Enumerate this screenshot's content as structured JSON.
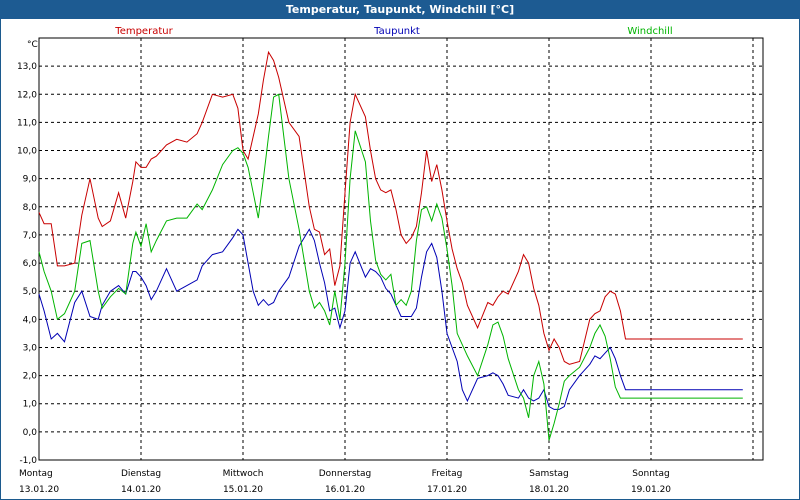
{
  "window": {
    "title": "Temperatur, Taupunkt, Windchill [°C]"
  },
  "colors": {
    "temperatur": "#c80000",
    "taupunkt": "#0000b4",
    "windchill": "#00b400",
    "title_bg": "#1d5b92"
  },
  "chart_data": {
    "type": "line",
    "title": "Temperatur, Taupunkt, Windchill [°C]",
    "ylabel": "°C",
    "ylim": [
      -1.0,
      14.0
    ],
    "xlim": [
      0,
      7
    ],
    "grid": true,
    "y_ticks": [
      "-1,0",
      "0,0",
      "1,0",
      "2,0",
      "3,0",
      "4,0",
      "5,0",
      "6,0",
      "7,0",
      "8,0",
      "9,0",
      "10,0",
      "11,0",
      "12,0",
      "13,0"
    ],
    "x_tick_days": [
      "Montag",
      "Dienstag",
      "Mittwoch",
      "Donnerstag",
      "Freitag",
      "Samstag",
      "Sonntag"
    ],
    "x_tick_dates": [
      "13.01.20",
      "14.01.20",
      "15.01.20",
      "16.01.20",
      "17.01.20",
      "18.01.20",
      "19.01.20"
    ],
    "series": [
      {
        "name": "Temperatur",
        "color": "#c80000",
        "x": [
          0,
          0.05,
          0.12,
          0.18,
          0.25,
          0.35,
          0.42,
          0.5,
          0.58,
          0.62,
          0.7,
          0.78,
          0.85,
          0.92,
          0.95,
          1.0,
          1.05,
          1.1,
          1.15,
          1.25,
          1.35,
          1.45,
          1.55,
          1.6,
          1.7,
          1.8,
          1.9,
          1.95,
          2.0,
          2.05,
          2.1,
          2.15,
          2.2,
          2.25,
          2.3,
          2.35,
          2.45,
          2.55,
          2.65,
          2.7,
          2.75,
          2.8,
          2.85,
          2.9,
          2.95,
          3.0,
          3.05,
          3.1,
          3.2,
          3.25,
          3.3,
          3.35,
          3.4,
          3.45,
          3.5,
          3.55,
          3.6,
          3.65,
          3.7,
          3.75,
          3.8,
          3.85,
          3.9,
          3.95,
          4.0,
          4.05,
          4.1,
          4.15,
          4.2,
          4.3,
          4.4,
          4.45,
          4.5,
          4.55,
          4.6,
          4.7,
          4.75,
          4.8,
          4.85,
          4.9,
          4.95,
          5.0,
          5.05,
          5.1,
          5.15,
          5.2,
          5.3,
          5.4,
          5.45,
          5.5,
          5.55,
          5.6,
          5.65,
          5.7,
          5.75,
          5.8,
          5.85,
          5.9,
          5.95,
          6.0,
          6.05,
          6.1,
          6.15,
          6.2,
          6.3,
          6.4,
          6.45,
          6.5,
          6.55,
          6.6,
          6.65,
          6.7,
          6.75,
          6.8,
          6.85,
          6.9
        ],
        "values": [
          7.8,
          7.4,
          7.4,
          5.9,
          5.9,
          6.0,
          7.7,
          9.0,
          7.6,
          7.3,
          7.5,
          8.5,
          7.6,
          8.9,
          9.6,
          9.4,
          9.4,
          9.7,
          9.8,
          10.2,
          10.4,
          10.3,
          10.6,
          11.0,
          12.0,
          11.9,
          12.0,
          11.5,
          10.0,
          9.7,
          10.5,
          11.3,
          12.5,
          13.5,
          13.2,
          12.6,
          11.0,
          10.5,
          8.0,
          7.2,
          7.1,
          6.3,
          6.5,
          5.2,
          5.9,
          8.5,
          11.0,
          12.0,
          11.2,
          10.0,
          9.0,
          8.6,
          8.5,
          8.6,
          7.9,
          7.0,
          6.7,
          6.9,
          7.3,
          8.5,
          10.0,
          8.9,
          9.5,
          8.6,
          7.5,
          6.5,
          5.8,
          5.3,
          4.5,
          3.7,
          4.6,
          4.5,
          4.8,
          5.0,
          4.9,
          5.7,
          6.3,
          6.0,
          5.1,
          4.5,
          3.5,
          2.9,
          3.3,
          3.0,
          2.5,
          2.4,
          2.5,
          4.0,
          4.2,
          4.3,
          4.8,
          5.0,
          4.9,
          4.3,
          3.3,
          3.3,
          3.3,
          3.3,
          3.3,
          3.3,
          3.3,
          3.3,
          3.3,
          3.3,
          3.3,
          3.3,
          3.3,
          3.3,
          3.3,
          3.3,
          3.3,
          3.3,
          3.3,
          3.3,
          3.3,
          3.3
        ]
      },
      {
        "name": "Taupunkt",
        "color": "#0000b4",
        "x": [
          0,
          0.05,
          0.12,
          0.18,
          0.25,
          0.35,
          0.42,
          0.5,
          0.58,
          0.62,
          0.7,
          0.78,
          0.85,
          0.92,
          0.95,
          1.0,
          1.05,
          1.1,
          1.15,
          1.25,
          1.35,
          1.45,
          1.55,
          1.6,
          1.7,
          1.8,
          1.9,
          1.95,
          2.0,
          2.05,
          2.1,
          2.15,
          2.2,
          2.25,
          2.3,
          2.35,
          2.45,
          2.55,
          2.65,
          2.7,
          2.75,
          2.8,
          2.85,
          2.9,
          2.95,
          3.0,
          3.05,
          3.1,
          3.2,
          3.25,
          3.3,
          3.35,
          3.4,
          3.45,
          3.5,
          3.55,
          3.6,
          3.65,
          3.7,
          3.75,
          3.8,
          3.85,
          3.9,
          3.95,
          4.0,
          4.05,
          4.1,
          4.15,
          4.2,
          4.3,
          4.4,
          4.45,
          4.5,
          4.55,
          4.6,
          4.7,
          4.75,
          4.8,
          4.85,
          4.9,
          4.95,
          5.0,
          5.05,
          5.1,
          5.15,
          5.2,
          5.3,
          5.4,
          5.45,
          5.5,
          5.55,
          5.6,
          5.65,
          5.7,
          5.75,
          5.8,
          5.85,
          5.9,
          5.95,
          6.0,
          6.05,
          6.1,
          6.15,
          6.2,
          6.3,
          6.4,
          6.45,
          6.5,
          6.55,
          6.6,
          6.65,
          6.7,
          6.75,
          6.8,
          6.85,
          6.9
        ],
        "values": [
          4.9,
          4.3,
          3.3,
          3.5,
          3.2,
          4.6,
          5.0,
          4.1,
          4.0,
          4.5,
          5.0,
          5.2,
          4.9,
          5.7,
          5.7,
          5.5,
          5.2,
          4.7,
          5.0,
          5.8,
          5.0,
          5.2,
          5.4,
          5.9,
          6.3,
          6.4,
          6.9,
          7.2,
          7.0,
          6.0,
          5.0,
          4.5,
          4.7,
          4.5,
          4.6,
          5.0,
          5.5,
          6.6,
          7.2,
          6.8,
          6.0,
          5.3,
          4.3,
          4.4,
          3.7,
          4.3,
          6.0,
          6.4,
          5.5,
          5.8,
          5.7,
          5.5,
          5.1,
          4.9,
          4.5,
          4.1,
          4.1,
          4.1,
          4.4,
          5.5,
          6.4,
          6.7,
          6.2,
          5.0,
          3.5,
          3.0,
          2.5,
          1.5,
          1.1,
          1.9,
          2.0,
          2.1,
          2.0,
          1.7,
          1.3,
          1.2,
          1.5,
          1.2,
          1.1,
          1.2,
          1.5,
          0.9,
          0.8,
          0.8,
          0.9,
          1.5,
          2.0,
          2.4,
          2.7,
          2.6,
          2.8,
          3.0,
          2.6,
          2.0,
          1.5,
          1.5,
          1.5,
          1.5,
          1.5,
          1.5,
          1.5,
          1.5,
          1.5,
          1.5,
          1.5,
          1.5,
          1.5,
          1.5,
          1.5,
          1.5,
          1.5,
          1.5,
          1.5,
          1.5,
          1.5,
          1.5
        ]
      },
      {
        "name": "Windchill",
        "color": "#00b400",
        "x": [
          0,
          0.05,
          0.12,
          0.18,
          0.25,
          0.35,
          0.42,
          0.5,
          0.58,
          0.62,
          0.7,
          0.78,
          0.85,
          0.92,
          0.95,
          1.0,
          1.05,
          1.1,
          1.15,
          1.25,
          1.35,
          1.45,
          1.55,
          1.6,
          1.7,
          1.8,
          1.9,
          1.95,
          2.0,
          2.05,
          2.1,
          2.15,
          2.2,
          2.25,
          2.3,
          2.35,
          2.45,
          2.55,
          2.65,
          2.7,
          2.75,
          2.8,
          2.85,
          2.9,
          2.95,
          3.0,
          3.05,
          3.1,
          3.2,
          3.25,
          3.3,
          3.35,
          3.4,
          3.45,
          3.5,
          3.55,
          3.6,
          3.65,
          3.7,
          3.75,
          3.8,
          3.85,
          3.9,
          3.95,
          4.0,
          4.05,
          4.1,
          4.15,
          4.2,
          4.3,
          4.4,
          4.45,
          4.5,
          4.55,
          4.6,
          4.7,
          4.75,
          4.8,
          4.85,
          4.9,
          4.95,
          5.0,
          5.05,
          5.1,
          5.15,
          5.2,
          5.3,
          5.4,
          5.45,
          5.5,
          5.55,
          5.6,
          5.65,
          5.7,
          5.75,
          5.8,
          5.85,
          5.9,
          5.95,
          6.0,
          6.05,
          6.1,
          6.15,
          6.2,
          6.3,
          6.4,
          6.45,
          6.5,
          6.55,
          6.6,
          6.65,
          6.7,
          6.75,
          6.8,
          6.85,
          6.9
        ],
        "values": [
          6.4,
          5.7,
          5.0,
          4.0,
          4.2,
          5.0,
          6.7,
          6.8,
          5.0,
          4.4,
          4.8,
          5.1,
          4.9,
          6.7,
          7.1,
          6.6,
          7.4,
          6.4,
          6.8,
          7.5,
          7.6,
          7.6,
          8.1,
          7.9,
          8.6,
          9.5,
          10.0,
          10.1,
          9.9,
          9.4,
          8.5,
          7.6,
          9.0,
          10.5,
          11.9,
          12.0,
          9.0,
          7.2,
          5.0,
          4.4,
          4.6,
          4.3,
          3.8,
          5.0,
          4.0,
          6.0,
          9.0,
          10.7,
          9.6,
          7.5,
          6.1,
          5.6,
          5.4,
          5.6,
          4.5,
          4.7,
          4.5,
          5.0,
          6.8,
          7.9,
          8.0,
          7.5,
          8.1,
          7.6,
          6.5,
          5.2,
          3.5,
          3.1,
          2.7,
          2.0,
          3.1,
          3.8,
          3.9,
          3.4,
          2.6,
          1.5,
          1.2,
          0.5,
          2.0,
          2.5,
          1.7,
          -0.3,
          0.3,
          1.0,
          1.8,
          2.0,
          2.3,
          3.0,
          3.5,
          3.8,
          3.4,
          2.6,
          1.6,
          1.2,
          1.2,
          1.2,
          1.2,
          1.2,
          1.2,
          1.2,
          1.2,
          1.2,
          1.2,
          1.2,
          1.2,
          1.2,
          1.2,
          1.2,
          1.2,
          1.2,
          1.2,
          1.2,
          1.2,
          1.2,
          1.2,
          1.2
        ]
      }
    ]
  }
}
